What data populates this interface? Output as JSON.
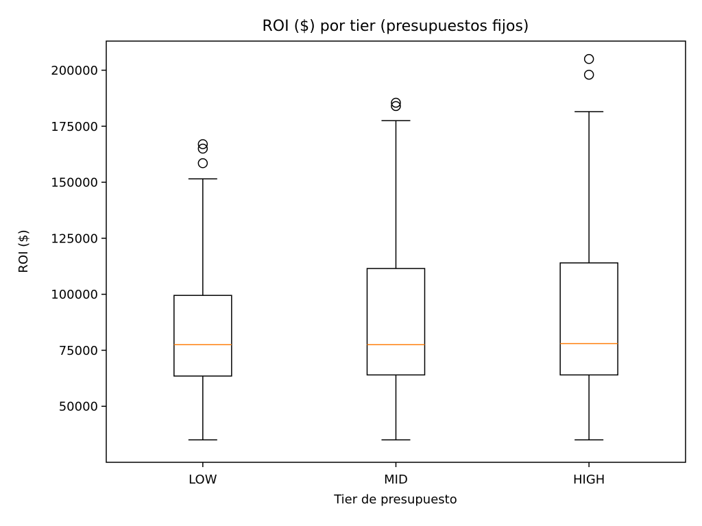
{
  "chart_data": {
    "type": "box",
    "title": "ROI ($) por tier (presupuestos fijos)",
    "xlabel": "Tier de presupuesto",
    "ylabel": "ROI ($)",
    "ylim": [
      25000,
      213000
    ],
    "yticks": [
      50000,
      75000,
      100000,
      125000,
      150000,
      175000,
      200000
    ],
    "grid": false,
    "categories": [
      "LOW",
      "MID",
      "HIGH"
    ],
    "boxes": [
      {
        "category": "LOW",
        "whisker_low": 35000,
        "q1": 63500,
        "median": 77500,
        "q3": 99500,
        "whisker_high": 151500,
        "outliers": [
          158500,
          165000,
          167000
        ]
      },
      {
        "category": "MID",
        "whisker_low": 35000,
        "q1": 64000,
        "median": 77500,
        "q3": 111500,
        "whisker_high": 177500,
        "outliers": [
          184000,
          185500
        ]
      },
      {
        "category": "HIGH",
        "whisker_low": 35000,
        "q1": 64000,
        "median": 78000,
        "q3": 114000,
        "whisker_high": 181500,
        "outliers": [
          198000,
          205000
        ]
      }
    ],
    "colors": {
      "box": "#000000",
      "median": "#ff7f0e",
      "outlier_edge": "#000000"
    }
  }
}
